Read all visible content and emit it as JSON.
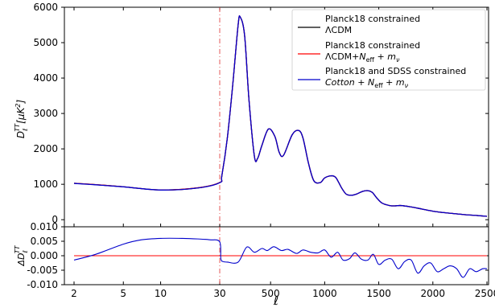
{
  "chart_data": [
    {
      "type": "line",
      "panel": "top",
      "ylabel": "D_ℓ^TT[μK²]",
      "ylim": [
        -200,
        6000
      ],
      "yticks": [
        0,
        1000,
        2000,
        3000,
        4000,
        5000,
        6000
      ],
      "x_scale": "log below ℓ=30, linear above ℓ=30",
      "x_split": 30,
      "annotation": "vertical dashed line at ℓ = 30",
      "legend_position": "top-right",
      "series": [
        {
          "name": "Planck18 constrained ΛCDM",
          "color": "#000000",
          "x": [
            2,
            3,
            5,
            10,
            20,
            30,
            50,
            100,
            150,
            200,
            220,
            260,
            300,
            350,
            380,
            420,
            480,
            540,
            580,
            620,
            700,
            760,
            800,
            850,
            900,
            960,
            1000,
            1060,
            1100,
            1130,
            1160,
            1200,
            1250,
            1300,
            1350,
            1400,
            1440,
            1480,
            1530,
            1600,
            1650,
            1700,
            1800,
            1900,
            2000,
            2100,
            2200,
            2300,
            2400,
            2500
          ],
          "values": [
            1030,
            990,
            930,
            840,
            900,
            1050,
            1250,
            2300,
            3800,
            5500,
            5720,
            5200,
            3400,
            1800,
            1730,
            2100,
            2560,
            2350,
            1900,
            1820,
            2400,
            2520,
            2300,
            1600,
            1100,
            1050,
            1180,
            1240,
            1200,
            1050,
            880,
            720,
            690,
            730,
            800,
            820,
            770,
            620,
            470,
            400,
            390,
            400,
            360,
            300,
            240,
            200,
            170,
            140,
            120,
            95
          ]
        },
        {
          "name": "Planck18 constrained ΛCDM+N_eff+m_ν",
          "color": "#ff0000",
          "x": [
            2,
            3,
            5,
            10,
            20,
            30,
            50,
            100,
            150,
            200,
            220,
            260,
            300,
            350,
            380,
            420,
            480,
            540,
            580,
            620,
            700,
            760,
            800,
            850,
            900,
            960,
            1000,
            1060,
            1100,
            1130,
            1160,
            1200,
            1250,
            1300,
            1350,
            1400,
            1440,
            1480,
            1530,
            1600,
            1650,
            1700,
            1800,
            1900,
            2000,
            2100,
            2200,
            2300,
            2400,
            2500
          ],
          "values": [
            1030,
            990,
            930,
            840,
            900,
            1050,
            1250,
            2300,
            3800,
            5500,
            5720,
            5200,
            3400,
            1800,
            1730,
            2100,
            2560,
            2350,
            1900,
            1820,
            2400,
            2520,
            2300,
            1600,
            1100,
            1050,
            1180,
            1240,
            1200,
            1050,
            880,
            720,
            690,
            730,
            800,
            820,
            770,
            620,
            470,
            400,
            390,
            400,
            360,
            300,
            240,
            200,
            170,
            140,
            120,
            95
          ]
        },
        {
          "name": "Planck18 and SDSS constrained Cotton+N_eff+m_ν",
          "color": "#0000cc",
          "x": [
            2,
            3,
            5,
            10,
            20,
            30,
            50,
            100,
            150,
            200,
            220,
            260,
            300,
            350,
            380,
            420,
            480,
            540,
            580,
            620,
            700,
            760,
            800,
            850,
            900,
            960,
            1000,
            1060,
            1100,
            1130,
            1160,
            1200,
            1250,
            1300,
            1350,
            1400,
            1440,
            1480,
            1530,
            1600,
            1650,
            1700,
            1800,
            1900,
            2000,
            2100,
            2200,
            2300,
            2400,
            2500
          ],
          "values": [
            1025,
            985,
            928,
            838,
            896,
            1045,
            1250,
            2300,
            3800,
            5500,
            5720,
            5200,
            3400,
            1800,
            1730,
            2100,
            2560,
            2350,
            1900,
            1820,
            2400,
            2520,
            2300,
            1600,
            1100,
            1050,
            1180,
            1240,
            1200,
            1050,
            880,
            720,
            690,
            730,
            800,
            820,
            770,
            620,
            470,
            400,
            390,
            400,
            360,
            300,
            240,
            200,
            170,
            140,
            120,
            95
          ]
        }
      ]
    },
    {
      "type": "line",
      "panel": "bottom",
      "xlabel": "ℓ",
      "ylabel": "ΔD_ℓ^TT",
      "ylim": [
        -0.01,
        0.01
      ],
      "yticks": [
        "0.010",
        "0.005",
        "0.000",
        "-0.005",
        "-0.010"
      ],
      "xticks": [
        "2",
        "5",
        "10",
        "30",
        "500",
        "1000",
        "1500",
        "2000",
        "2500"
      ],
      "series": [
        {
          "color": "#ff0000",
          "x": [
            2,
            2500
          ],
          "values": [
            0,
            0
          ]
        },
        {
          "color": "#0000cc",
          "x": [
            2,
            3,
            5,
            7,
            10,
            15,
            20,
            25,
            30,
            40,
            60,
            100,
            200,
            280,
            350,
            420,
            470,
            530,
            600,
            660,
            740,
            800,
            870,
            940,
            1000,
            1060,
            1120,
            1170,
            1230,
            1280,
            1340,
            1400,
            1450,
            1500,
            1560,
            1620,
            1680,
            1740,
            1800,
            1860,
            1920,
            1980,
            2040,
            2100,
            2160,
            2220,
            2280,
            2340,
            2400,
            2460,
            2500
          ],
          "values": [
            -0.0015,
            0.0005,
            0.004,
            0.0055,
            0.006,
            0.006,
            0.0058,
            0.0055,
            0.0048,
            -0.001,
            -0.002,
            -0.0022,
            -0.0022,
            0.003,
            0.0012,
            0.0025,
            0.0018,
            0.0031,
            0.0018,
            0.0022,
            0.0008,
            0.002,
            0.0012,
            0.001,
            0.002,
            -0.0005,
            0.0012,
            -0.0015,
            -0.001,
            0.001,
            -0.0012,
            -0.0015,
            0.0005,
            -0.003,
            -0.0015,
            -0.0012,
            -0.0045,
            -0.002,
            -0.0015,
            -0.006,
            -0.0035,
            -0.0025,
            -0.0055,
            -0.0045,
            -0.0035,
            -0.0045,
            -0.0075,
            -0.0045,
            -0.0055,
            -0.0045,
            -0.0045
          ]
        }
      ]
    }
  ]
}
